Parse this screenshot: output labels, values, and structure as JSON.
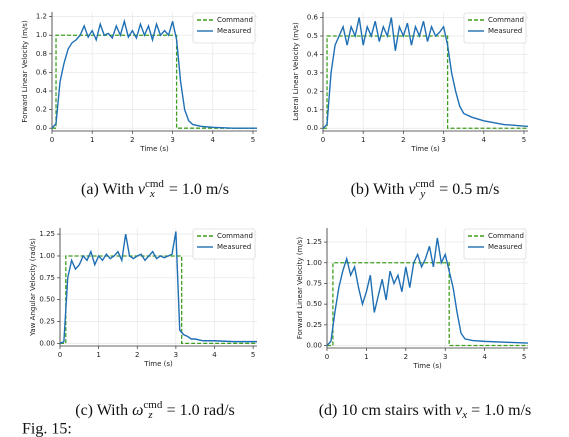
{
  "chart_data": [
    {
      "type": "line",
      "ylabel": "Forward Linear Velocity (m/s)",
      "xlabel": "Time (s)",
      "xlim": [
        0,
        5.1
      ],
      "xticks": [
        0,
        1,
        2,
        3,
        4,
        5
      ],
      "ylim": [
        -0.03,
        1.25
      ],
      "yticks": [
        {
          "value": 0,
          "label": "0.0"
        },
        0.2,
        0.4,
        0.6,
        0.8,
        {
          "value": 1,
          "label": "1.0"
        },
        1.2
      ],
      "grid": true,
      "legend": "upper right",
      "series": [
        {
          "name": "Command",
          "color": "#3f9e1f",
          "dashed": true,
          "x": [
            0,
            0.1,
            0.1,
            3.1,
            3.1,
            5.1
          ],
          "values": [
            0,
            0,
            1,
            1,
            0,
            0
          ]
        },
        {
          "name": "Measured",
          "color": "#1f6fb4",
          "x": [
            0,
            0.1,
            0.2,
            0.3,
            0.4,
            0.5,
            0.6,
            0.7,
            0.8,
            0.9,
            1.0,
            1.1,
            1.2,
            1.3,
            1.4,
            1.5,
            1.6,
            1.7,
            1.8,
            1.9,
            2.0,
            2.1,
            2.2,
            2.3,
            2.4,
            2.5,
            2.6,
            2.7,
            2.8,
            2.9,
            3.0,
            3.1,
            3.2,
            3.3,
            3.4,
            3.5,
            3.7,
            4.0,
            4.5,
            5.1
          ],
          "values": [
            0,
            0.05,
            0.5,
            0.7,
            0.85,
            0.92,
            0.95,
            1.0,
            1.1,
            0.98,
            1.05,
            0.95,
            1.12,
            1.0,
            1.02,
            0.97,
            1.1,
            1.0,
            1.15,
            0.98,
            1.05,
            0.97,
            1.12,
            1.0,
            1.1,
            0.95,
            1.12,
            1.0,
            1.05,
            1.0,
            1.15,
            0.95,
            0.5,
            0.2,
            0.08,
            0.04,
            0.02,
            0.01,
            0,
            0
          ]
        }
      ],
      "caption": {
        "prefix": "(a) With ",
        "symbol": "v",
        "sub": "x",
        "sup": "cmd",
        "suffix": " = 1.0 m/s"
      }
    },
    {
      "type": "line",
      "ylabel": "Lateral Linear Velocity (m/s)",
      "xlabel": "Time (s)",
      "xlim": [
        0,
        5.1
      ],
      "xticks": [
        0,
        1,
        2,
        3,
        4,
        5
      ],
      "ylim": [
        -0.015,
        0.63
      ],
      "yticks": [
        {
          "value": 0,
          "label": "0.0"
        },
        0.1,
        0.2,
        0.3,
        0.4,
        0.5,
        0.6
      ],
      "grid": true,
      "legend": "upper right",
      "series": [
        {
          "name": "Command",
          "color": "#3f9e1f",
          "dashed": true,
          "x": [
            0,
            0.1,
            0.1,
            3.1,
            3.1,
            5.1
          ],
          "values": [
            0,
            0,
            0.5,
            0.5,
            0,
            0
          ]
        },
        {
          "name": "Measured",
          "color": "#1f6fb4",
          "x": [
            0,
            0.1,
            0.2,
            0.3,
            0.4,
            0.5,
            0.6,
            0.7,
            0.8,
            0.9,
            1.0,
            1.1,
            1.2,
            1.3,
            1.4,
            1.5,
            1.6,
            1.7,
            1.8,
            1.9,
            2.0,
            2.1,
            2.2,
            2.3,
            2.4,
            2.5,
            2.6,
            2.7,
            2.8,
            2.9,
            3.0,
            3.1,
            3.2,
            3.3,
            3.4,
            3.5,
            3.7,
            4.0,
            4.5,
            5.1
          ],
          "values": [
            0,
            0.02,
            0.3,
            0.45,
            0.5,
            0.55,
            0.45,
            0.55,
            0.5,
            0.6,
            0.45,
            0.55,
            0.5,
            0.58,
            0.47,
            0.55,
            0.5,
            0.6,
            0.42,
            0.55,
            0.5,
            0.57,
            0.45,
            0.55,
            0.5,
            0.58,
            0.47,
            0.55,
            0.5,
            0.52,
            0.55,
            0.45,
            0.3,
            0.2,
            0.12,
            0.08,
            0.06,
            0.04,
            0.02,
            0.01
          ]
        }
      ],
      "caption": {
        "prefix": "(b) With ",
        "symbol": "v",
        "sub": "y",
        "sup": "cmd",
        "suffix": " = 0.5 m/s"
      }
    },
    {
      "type": "line",
      "ylabel": "Yaw Angular Velocity (rad/s)",
      "xlabel": "Time (s)",
      "xlim": [
        0,
        5.1
      ],
      "xticks": [
        0,
        1,
        2,
        3,
        4,
        5
      ],
      "ylim": [
        -0.03,
        1.32
      ],
      "yticks": [
        {
          "value": 0,
          "label": "0.00"
        },
        {
          "value": 0.25,
          "label": "0.25"
        },
        {
          "value": 0.5,
          "label": "0.50"
        },
        {
          "value": 0.75,
          "label": "0.75"
        },
        {
          "value": 1,
          "label": "1.00"
        },
        {
          "value": 1.25,
          "label": "1.25"
        }
      ],
      "grid": true,
      "legend": "upper right",
      "series": [
        {
          "name": "Command",
          "color": "#3f9e1f",
          "dashed": true,
          "x": [
            0,
            0.15,
            0.15,
            3.15,
            3.15,
            5.1
          ],
          "values": [
            0,
            0,
            1,
            1,
            0,
            0
          ]
        },
        {
          "name": "Measured",
          "color": "#1f6fb4",
          "x": [
            0,
            0.1,
            0.2,
            0.3,
            0.4,
            0.5,
            0.6,
            0.7,
            0.8,
            0.9,
            1.0,
            1.1,
            1.2,
            1.3,
            1.4,
            1.5,
            1.6,
            1.7,
            1.8,
            1.9,
            2.0,
            2.1,
            2.2,
            2.3,
            2.4,
            2.5,
            2.6,
            2.7,
            2.8,
            2.9,
            3.0,
            3.1,
            3.2,
            3.3,
            3.4,
            3.5,
            3.7,
            4.0,
            4.5,
            5.1
          ],
          "values": [
            0,
            0.02,
            0.75,
            0.95,
            0.85,
            0.9,
            1.0,
            0.95,
            1.05,
            0.9,
            1.0,
            0.95,
            1.02,
            0.97,
            1.0,
            1.05,
            0.95,
            1.25,
            1.0,
            0.97,
            1.0,
            1.02,
            0.95,
            1.0,
            1.05,
            0.97,
            1.0,
            0.98,
            1.0,
            1.02,
            1.28,
            0.15,
            0.1,
            0.08,
            0.05,
            0.05,
            0.03,
            0.03,
            0.02,
            0.02
          ]
        }
      ],
      "caption": {
        "prefix": "(c) With ",
        "symbol": "ω",
        "sub": "z",
        "sup": "cmd",
        "suffix": " = 1.0 rad/s"
      }
    },
    {
      "type": "line",
      "ylabel": "Forward Linear Velocity (m/s)",
      "xlabel": "Time (s)",
      "xlim": [
        0,
        5.1
      ],
      "xticks": [
        0,
        1,
        2,
        3,
        4,
        5
      ],
      "ylim": [
        -0.03,
        1.42
      ],
      "yticks": [
        {
          "value": 0,
          "label": "0.00"
        },
        {
          "value": 0.25,
          "label": "0.25"
        },
        {
          "value": 0.5,
          "label": "0.50"
        },
        {
          "value": 0.75,
          "label": "0.75"
        },
        {
          "value": 1,
          "label": "1.00"
        },
        {
          "value": 1.25,
          "label": "1.25"
        }
      ],
      "grid": true,
      "legend": "upper right",
      "series": [
        {
          "name": "Command",
          "color": "#3f9e1f",
          "dashed": true,
          "x": [
            0,
            0.15,
            0.15,
            3.1,
            3.1,
            5.1
          ],
          "values": [
            0,
            0,
            1,
            1,
            0,
            0
          ]
        },
        {
          "name": "Measured",
          "color": "#1f6fb4",
          "x": [
            0,
            0.1,
            0.2,
            0.3,
            0.4,
            0.5,
            0.6,
            0.7,
            0.8,
            0.9,
            1.0,
            1.1,
            1.2,
            1.3,
            1.4,
            1.5,
            1.6,
            1.7,
            1.8,
            1.9,
            2.0,
            2.1,
            2.2,
            2.3,
            2.4,
            2.5,
            2.6,
            2.7,
            2.8,
            2.9,
            3.0,
            3.1,
            3.2,
            3.3,
            3.4,
            3.5,
            3.7,
            4.0,
            4.5,
            5.1
          ],
          "values": [
            0,
            0.05,
            0.4,
            0.7,
            0.9,
            1.05,
            0.85,
            0.95,
            0.7,
            0.5,
            0.65,
            0.85,
            0.4,
            0.6,
            0.8,
            0.55,
            0.9,
            0.75,
            0.85,
            0.65,
            0.95,
            0.7,
            1.0,
            1.1,
            0.95,
            1.05,
            1.2,
            0.95,
            1.3,
            1.0,
            1.1,
            0.9,
            0.7,
            0.4,
            0.15,
            0.08,
            0.06,
            0.05,
            0.04,
            0.03
          ]
        }
      ],
      "caption": {
        "prefix": "(d) 10 cm stairs with ",
        "symbol": "v",
        "sub": "x",
        "suffix": " = 1.0 m/s"
      }
    }
  ],
  "figure_caption": "Fig. 15:"
}
